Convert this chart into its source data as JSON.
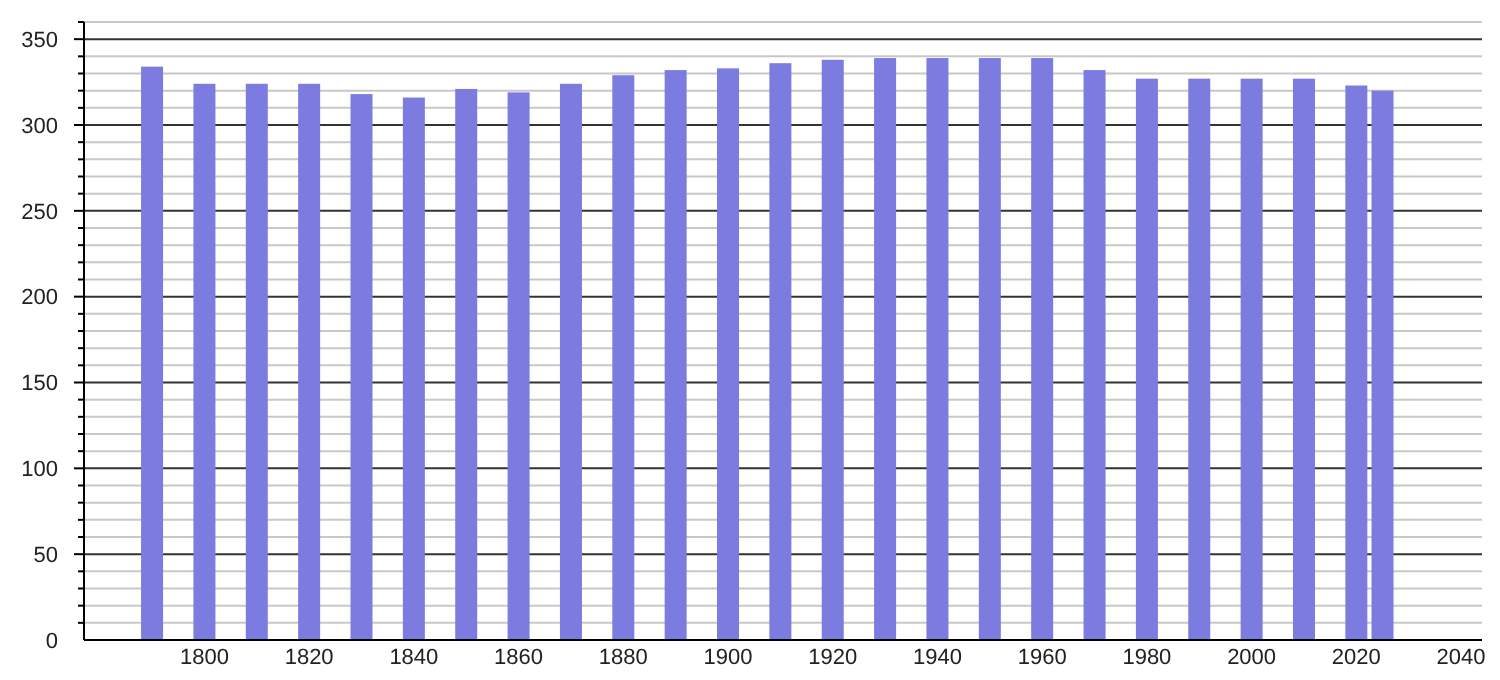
{
  "chart_data": {
    "type": "bar",
    "x": [
      1790,
      1800,
      1810,
      1820,
      1830,
      1840,
      1850,
      1860,
      1870,
      1880,
      1890,
      1900,
      1910,
      1920,
      1930,
      1940,
      1950,
      1960,
      1970,
      1980,
      1990,
      2000,
      2010,
      2020,
      2025
    ],
    "values": [
      334,
      324,
      324,
      324,
      318,
      316,
      321,
      319,
      324,
      329,
      332,
      333,
      336,
      338,
      339,
      339,
      339,
      339,
      332,
      327,
      327,
      327,
      327,
      323,
      320
    ],
    "color": "#7b7be0",
    "xlim": [
      1777,
      2044
    ],
    "ylim": [
      0,
      360
    ],
    "xticks": [
      1800,
      1820,
      1840,
      1860,
      1880,
      1900,
      1920,
      1940,
      1960,
      1980,
      2000,
      2020,
      2040
    ],
    "yticks": [
      0,
      {
        "value": 10,
        "label": null
      },
      {
        "value": 20,
        "label": null
      },
      {
        "value": 30,
        "label": null
      },
      {
        "value": 40,
        "label": null
      },
      50,
      {
        "value": 60,
        "label": null
      },
      {
        "value": 70,
        "label": null
      },
      {
        "value": 80,
        "label": null
      },
      {
        "value": 90,
        "label": null
      },
      100,
      {
        "value": 110,
        "label": null
      },
      {
        "value": 120,
        "label": null
      },
      {
        "value": 130,
        "label": null
      },
      {
        "value": 140,
        "label": null
      },
      150,
      {
        "value": 160,
        "label": null
      },
      {
        "value": 170,
        "label": null
      },
      {
        "value": 180,
        "label": null
      },
      {
        "value": 190,
        "label": null
      },
      200,
      {
        "value": 210,
        "label": null
      },
      {
        "value": 220,
        "label": null
      },
      {
        "value": 230,
        "label": null
      },
      {
        "value": 240,
        "label": null
      },
      250,
      {
        "value": 260,
        "label": null
      },
      {
        "value": 270,
        "label": null
      },
      {
        "value": 280,
        "label": null
      },
      {
        "value": 290,
        "label": null
      },
      300,
      {
        "value": 310,
        "label": null
      },
      {
        "value": 320,
        "label": null
      },
      {
        "value": 330,
        "label": null
      },
      {
        "value": 340,
        "label": null
      },
      350,
      {
        "value": 360,
        "label": null
      }
    ],
    "grid": "y"
  }
}
